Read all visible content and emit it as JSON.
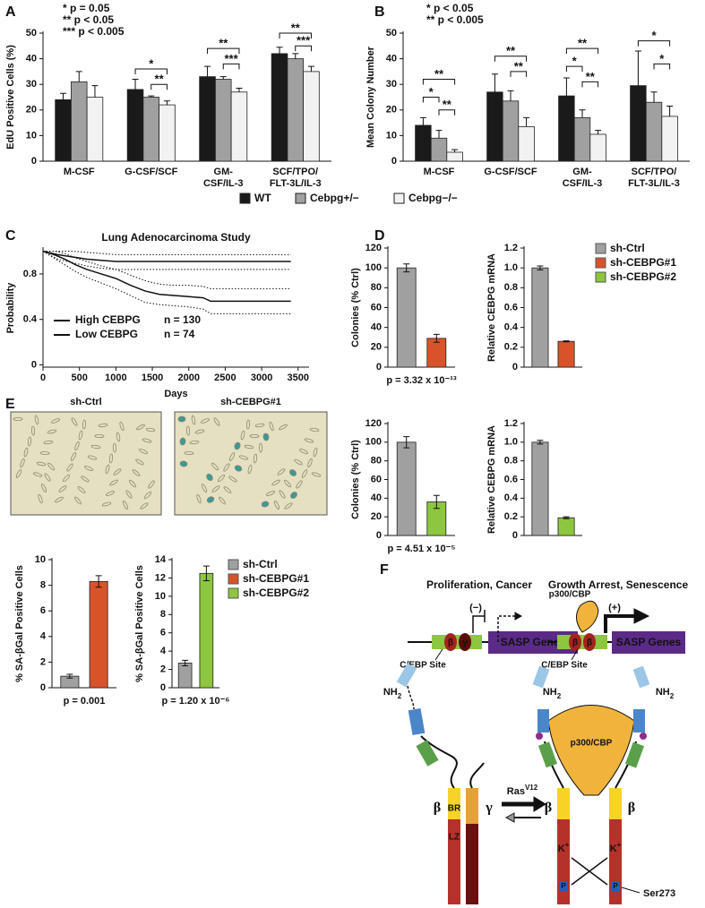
{
  "chart_data": [
    {
      "type": "bar",
      "panel": "A",
      "ylabel": "EdU Positive Cells (%)",
      "categories": [
        [
          "M-CSF"
        ],
        [
          "G-CSF/SCF"
        ],
        [
          "GM-",
          "CSF/IL-3"
        ],
        [
          "SCF/TPO/",
          "FLT-3L/IL-3"
        ]
      ],
      "series": [
        {
          "name": "WT",
          "color": "#1a1a1a",
          "values": [
            24,
            28,
            33,
            42
          ],
          "errors": [
            2.5,
            4,
            4,
            2.5
          ]
        },
        {
          "name": "Cebpg+/−",
          "color": "#a0a0a0",
          "values": [
            31,
            25,
            32,
            40
          ],
          "errors": [
            4,
            0.5,
            1,
            2
          ]
        },
        {
          "name": "Cebpg−/−",
          "color": "#f2f2f2",
          "values": [
            25,
            22,
            27,
            35
          ],
          "errors": [
            4.5,
            1.5,
            1.5,
            2
          ]
        }
      ],
      "ylim": [
        0,
        50
      ],
      "yticks": [
        0,
        10,
        20,
        30,
        40,
        50
      ],
      "significance": [
        "*",
        "**",
        "**",
        "***",
        "**",
        "***"
      ],
      "notes": [
        "* p = 0.05",
        "** p < 0.05",
        "*** p < 0.005"
      ]
    },
    {
      "type": "bar",
      "panel": "B",
      "ylabel": "Mean Colony Number",
      "categories": [
        [
          "M-CSF"
        ],
        [
          "G-CSF/SCF"
        ],
        [
          "GM-",
          "CSF/IL-3"
        ],
        [
          "SCF/TPO/",
          "FLT-3L/IL-3"
        ]
      ],
      "series": [
        {
          "color": "#1a1a1a",
          "values": [
            14,
            27,
            25.5,
            29.5
          ],
          "errors": [
            3,
            7,
            7,
            13.5
          ]
        },
        {
          "color": "#a0a0a0",
          "values": [
            9,
            23.5,
            17,
            23
          ],
          "errors": [
            3,
            4,
            3,
            4
          ]
        },
        {
          "color": "#f2f2f2",
          "values": [
            3.5,
            13.5,
            10.5,
            17.5
          ],
          "errors": [
            1,
            3.5,
            1.5,
            4
          ]
        }
      ],
      "ylim": [
        0,
        50
      ],
      "yticks": [
        0,
        10,
        20,
        30,
        40,
        50
      ],
      "significance": [
        "*",
        "**",
        "**",
        "**",
        "**",
        "*",
        "**",
        "**",
        "*",
        "*"
      ],
      "notes": [
        "* p < 0.05",
        "** p < 0.005"
      ]
    },
    {
      "type": "line",
      "panel": "C",
      "title": "Lung Adenocarcinoma Study",
      "xlabel": "Days",
      "ylabel": "Probability",
      "xlim": [
        0,
        3650
      ],
      "xticks": [
        0,
        500,
        1000,
        1500,
        2000,
        2500,
        3000,
        3500
      ],
      "ylim": [
        -0.02,
        1.02
      ],
      "yticks": [
        0,
        0.4,
        0.8
      ],
      "series": [
        {
          "name": "High CEBPG",
          "n_label": "n = 130",
          "color": "#e32119",
          "x": [
            0,
            150,
            300,
            450,
            600,
            800,
            1000,
            1200,
            1400,
            1600,
            1800,
            2000,
            2200,
            2300,
            2600,
            3000,
            3400
          ],
          "values": [
            1,
            0.97,
            0.93,
            0.88,
            0.84,
            0.8,
            0.76,
            0.7,
            0.65,
            0.62,
            0.61,
            0.6,
            0.59,
            0.56,
            0.56,
            0.56,
            0.56
          ],
          "lower": [
            1,
            0.94,
            0.88,
            0.82,
            0.77,
            0.72,
            0.67,
            0.61,
            0.55,
            0.53,
            0.52,
            0.51,
            0.49,
            0.45,
            0.45,
            0.45,
            0.45
          ],
          "upper": [
            1,
            1,
            0.98,
            0.94,
            0.91,
            0.87,
            0.84,
            0.79,
            0.74,
            0.71,
            0.7,
            0.7,
            0.69,
            0.67,
            0.67,
            0.67,
            0.67
          ]
        },
        {
          "name": "Low CEBPG",
          "n_label": "n = 74",
          "color": "#1f3fbf",
          "x": [
            0,
            200,
            400,
            600,
            800,
            1000,
            1500,
            2000,
            2500,
            3000,
            3400
          ],
          "values": [
            1,
            0.97,
            0.95,
            0.93,
            0.92,
            0.91,
            0.91,
            0.91,
            0.91,
            0.91,
            0.91
          ],
          "lower": [
            1,
            0.93,
            0.9,
            0.87,
            0.85,
            0.84,
            0.84,
            0.84,
            0.84,
            0.84,
            0.84
          ],
          "upper": [
            1,
            1,
            1,
            0.99,
            0.98,
            0.97,
            0.97,
            0.97,
            0.97,
            0.97,
            0.97
          ]
        }
      ]
    },
    {
      "type": "bar",
      "panel": "D",
      "ylabel": "Colonies (% Ctrl)",
      "series": [
        {
          "color": "#a0a0a0",
          "values": [
            100
          ],
          "errors": [
            4
          ]
        },
        {
          "color": "#d9532a",
          "values": [
            29
          ],
          "errors": [
            4
          ]
        }
      ],
      "ylim": [
        0,
        120
      ],
      "yticks": [
        0,
        20,
        40,
        60,
        80,
        100,
        120
      ],
      "note": "p = 3.32 x 10⁻¹³"
    },
    {
      "type": "bar",
      "ylabel": "Relative CEBPG mRNA",
      "series": [
        {
          "color": "#a0a0a0",
          "values": [
            1.0
          ],
          "errors": [
            0.02
          ]
        },
        {
          "color": "#d9532a",
          "values": [
            0.26
          ],
          "errors": [
            0.005
          ]
        }
      ],
      "ylim": [
        0,
        1.2
      ],
      "yticks": [
        0,
        0.2,
        0.4,
        0.6,
        0.8,
        {
          "value": 1,
          "label": "1.0"
        },
        1.2
      ]
    },
    {
      "type": "legend",
      "series": [
        {
          "name": "sh-Ctrl",
          "color": "#a0a0a0"
        },
        {
          "name": "sh-CEBPG#1",
          "color": "#d9532a"
        },
        {
          "name": "sh-CEBPG#2",
          "color": "#8dc63f"
        }
      ]
    },
    {
      "type": "bar",
      "ylabel": "Colonies (% Ctrl)",
      "series": [
        {
          "color": "#a0a0a0",
          "values": [
            100
          ],
          "errors": [
            6
          ]
        },
        {
          "color": "#8dc63f",
          "values": [
            36
          ],
          "errors": [
            7
          ]
        }
      ],
      "ylim": [
        0,
        120
      ],
      "yticks": [
        0,
        20,
        40,
        60,
        80,
        100,
        120
      ],
      "note": "p = 4.51 x 10⁻⁵"
    },
    {
      "type": "bar",
      "ylabel": "Relative CEBPG mRNA",
      "series": [
        {
          "color": "#a0a0a0",
          "values": [
            1.0
          ],
          "errors": [
            0.02
          ]
        },
        {
          "color": "#8dc63f",
          "values": [
            0.19
          ],
          "errors": [
            0.01
          ]
        }
      ],
      "ylim": [
        0,
        1.2
      ],
      "yticks": [
        0,
        0.2,
        0.4,
        0.6,
        0.8,
        {
          "value": 1,
          "label": "1.0"
        },
        1.2
      ]
    },
    {
      "type": "bar",
      "ylabel": "% SA-βGal Positive Cells",
      "series": [
        {
          "color": "#a0a0a0",
          "values": [
            0.9
          ],
          "errors": [
            0.15
          ]
        },
        {
          "color": "#d9532a",
          "values": [
            8.3
          ],
          "errors": [
            0.45
          ]
        }
      ],
      "ylim": [
        0,
        10
      ],
      "yticks": [
        0,
        2,
        4,
        6,
        8,
        10
      ],
      "note": "p = 0.001"
    },
    {
      "type": "bar",
      "ylabel": "% SA-βGal Positive Cells",
      "series": [
        {
          "color": "#a0a0a0",
          "values": [
            2.7
          ],
          "errors": [
            0.3
          ]
        },
        {
          "color": "#8dc63f",
          "values": [
            12.5
          ],
          "errors": [
            0.8
          ]
        }
      ],
      "ylim": [
        0,
        14
      ],
      "yticks": [
        0,
        2,
        4,
        6,
        8,
        10,
        12,
        14
      ],
      "note": "p = 1.20 x 10⁻⁶"
    },
    {
      "type": "legend",
      "series": [
        {
          "name": "sh-Ctrl",
          "color": "#a0a0a0"
        },
        {
          "name": "sh-CEBPG#1",
          "color": "#d9532a"
        },
        {
          "name": "sh-CEBPG#2",
          "color": "#8dc63f"
        }
      ]
    }
  ],
  "images": {
    "panel": "E",
    "labels": [
      "sh-Ctrl",
      "sh-CEBPG#1"
    ]
  },
  "diagram": {
    "panel": "F",
    "left_title": "Proliferation, Cancer",
    "right_title": "Growth Arrest, Senescence",
    "repress": "(−)",
    "activate": "(+)",
    "beta": "β",
    "gamma": "γ",
    "genes": "SASP Genes",
    "site": "C/EBP Site",
    "coactivator": "p300/CBP",
    "nh": "NH",
    "nh_sub": "2",
    "br": "BR",
    "lz": "LZ",
    "ras": "Ras",
    "ras_sup": "V12",
    "lys": "K",
    "lys_sup": "+",
    "phos": "P",
    "ser": "Ser273"
  }
}
